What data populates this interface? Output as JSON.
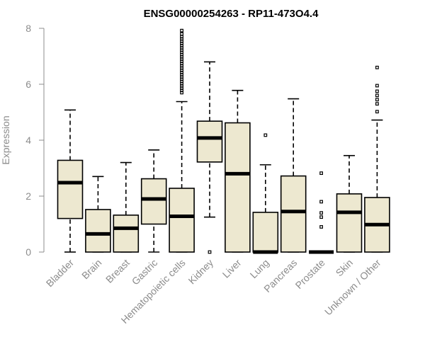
{
  "chart_data": {
    "type": "boxplot",
    "title": "ENSG00000254263 - RP11-473O4.4",
    "xlabel": "",
    "ylabel": "Expression",
    "ylim": [
      0,
      8
    ],
    "yticks": [
      0,
      2,
      4,
      6,
      8
    ],
    "box_fill": "#ede8d0",
    "categories": [
      "Bladder",
      "Brain",
      "Breast",
      "Gastric",
      "Hematopoietic cells",
      "Kidney",
      "Liver",
      "Lung",
      "Pancreas",
      "Prostate",
      "Skin",
      "Unknown / Other"
    ],
    "boxes": [
      {
        "name": "Bladder",
        "whisker_low": 0.0,
        "q1": 1.2,
        "median": 2.48,
        "q3": 3.28,
        "whisker_high": 5.08,
        "outliers": []
      },
      {
        "name": "Brain",
        "whisker_low": 0.0,
        "q1": 0.0,
        "median": 0.65,
        "q3": 1.52,
        "whisker_high": 2.7,
        "outliers": []
      },
      {
        "name": "Breast",
        "whisker_low": 0.0,
        "q1": 0.0,
        "median": 0.85,
        "q3": 1.32,
        "whisker_high": 3.2,
        "outliers": []
      },
      {
        "name": "Gastric",
        "whisker_low": 0.0,
        "q1": 1.0,
        "median": 1.9,
        "q3": 2.62,
        "whisker_high": 3.65,
        "outliers": []
      },
      {
        "name": "Hematopoietic cells",
        "whisker_low": 0.0,
        "q1": 0.0,
        "median": 1.28,
        "q3": 2.28,
        "whisker_high": 5.38,
        "outliers": [
          5.7,
          5.78,
          5.86,
          5.94,
          6.02,
          6.1,
          6.18,
          6.26,
          6.34,
          6.42,
          6.5,
          6.58,
          6.66,
          6.74,
          6.82,
          6.9,
          6.98,
          7.06,
          7.14,
          7.22,
          7.3,
          7.38,
          7.46,
          7.54,
          7.62,
          7.7,
          7.8,
          7.92
        ]
      },
      {
        "name": "Kidney",
        "whisker_low": 1.25,
        "q1": 3.22,
        "median": 4.08,
        "q3": 4.68,
        "whisker_high": 6.8,
        "outliers": [
          0.0
        ]
      },
      {
        "name": "Liver",
        "whisker_low": 0.0,
        "q1": 0.0,
        "median": 2.8,
        "q3": 4.62,
        "whisker_high": 5.78,
        "outliers": []
      },
      {
        "name": "Lung",
        "whisker_low": 0.0,
        "q1": 0.0,
        "median": 0.0,
        "q3": 1.42,
        "whisker_high": 3.12,
        "outliers": [
          4.18
        ]
      },
      {
        "name": "Pancreas",
        "whisker_low": 0.0,
        "q1": 0.0,
        "median": 1.45,
        "q3": 2.72,
        "whisker_high": 5.48,
        "outliers": []
      },
      {
        "name": "Prostate",
        "whisker_low": 0.0,
        "q1": 0.0,
        "median": 0.0,
        "q3": 0.0,
        "whisker_high": 0.0,
        "outliers": [
          0.9,
          1.25,
          1.4,
          1.8,
          2.82
        ]
      },
      {
        "name": "Skin",
        "whisker_low": 0.0,
        "q1": 0.0,
        "median": 1.42,
        "q3": 2.08,
        "whisker_high": 3.45,
        "outliers": []
      },
      {
        "name": "Unknown / Other",
        "whisker_low": 0.0,
        "q1": 0.0,
        "median": 0.98,
        "q3": 1.95,
        "whisker_high": 4.72,
        "outliers": [
          5.02,
          5.3,
          5.45,
          5.6,
          5.75,
          5.95,
          6.6
        ]
      }
    ]
  }
}
